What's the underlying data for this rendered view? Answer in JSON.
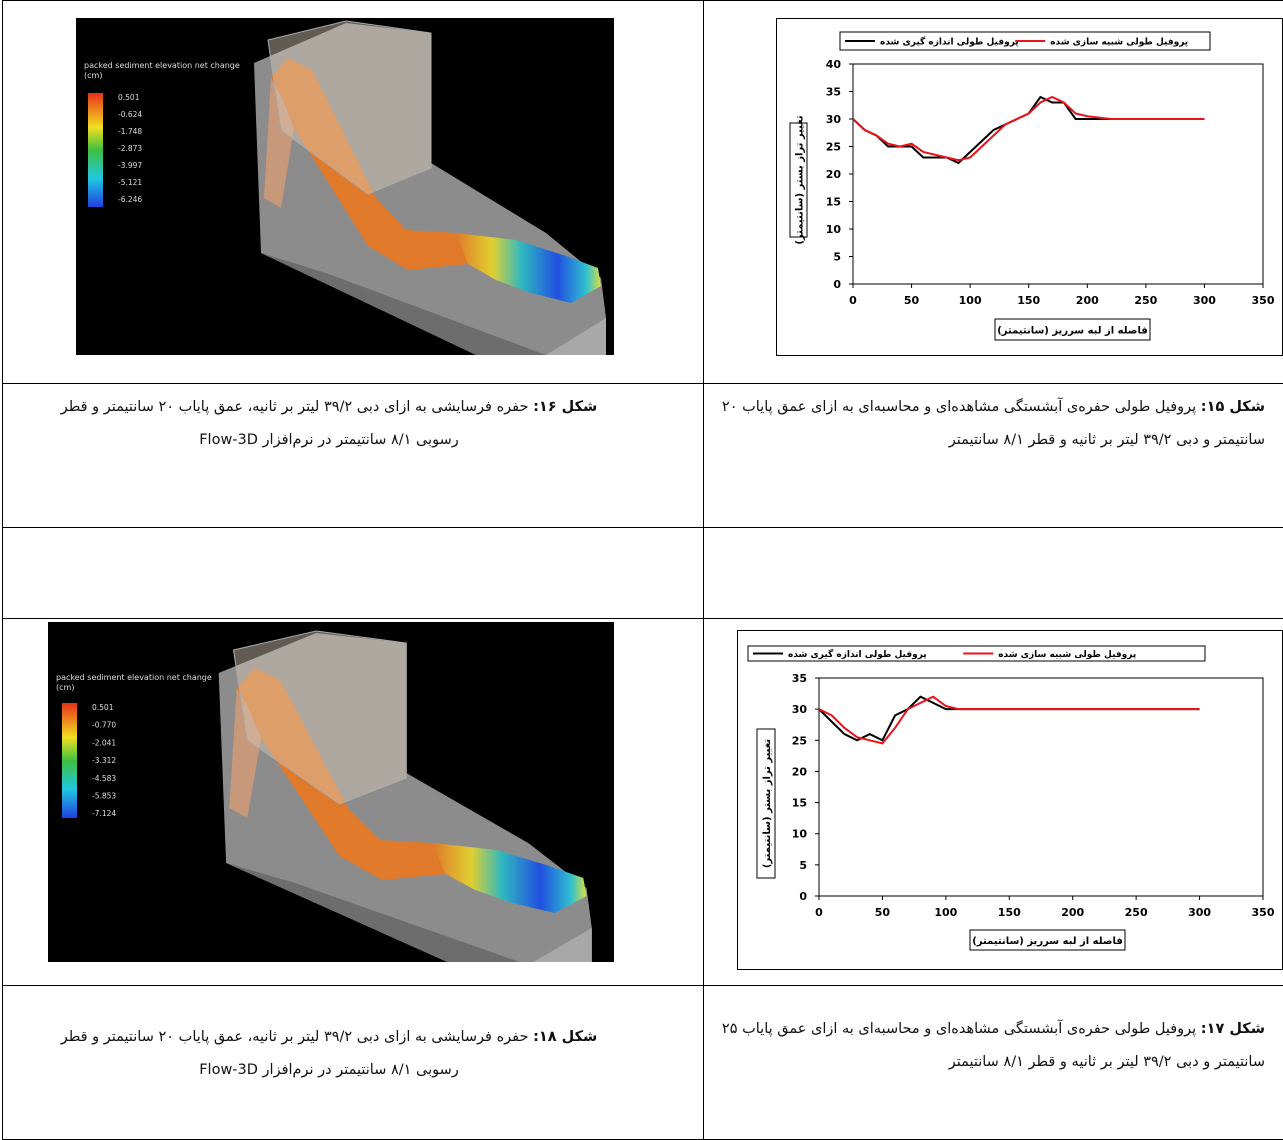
{
  "chart_data": [
    {
      "type": "line",
      "x_label": "فاصله از لبه سرریز (سانتیمتر)",
      "y_label": "تغییر تراز بستر (سانتیمتر)",
      "x": [
        0,
        10,
        20,
        30,
        40,
        50,
        60,
        70,
        80,
        90,
        100,
        110,
        120,
        130,
        140,
        150,
        160,
        170,
        180,
        190,
        200,
        220,
        250,
        300
      ],
      "series": [
        {
          "name": "پروفیل طولی اندازه گیری شده",
          "color": "#000000",
          "values": [
            30,
            28,
            27,
            25,
            25,
            25,
            23,
            23,
            23,
            22,
            24,
            26,
            28,
            29,
            30,
            31,
            34,
            33,
            33,
            30,
            30,
            30,
            30,
            30
          ]
        },
        {
          "name": "پروفیل طولی شبیه سازی شده",
          "color": "#e8121b",
          "values": [
            30,
            28,
            27,
            25.5,
            25,
            25.5,
            24,
            23.5,
            23,
            22.5,
            23,
            25,
            27,
            29,
            30,
            31,
            33,
            34,
            33,
            31,
            30.5,
            30,
            30,
            30
          ]
        }
      ],
      "xlim": [
        0,
        350
      ],
      "xticks": [
        0,
        50,
        100,
        150,
        200,
        250,
        300,
        350
      ],
      "ylim": [
        0,
        40
      ],
      "yticks": [
        0,
        5,
        10,
        15,
        20,
        25,
        30,
        35,
        40
      ],
      "legend": "top"
    },
    {
      "type": "line",
      "x_label": "فاصله از لبه سرریز (سانتیمتر)",
      "y_label": "تغییر تراز بستر (سانتیمتر)",
      "x": [
        0,
        10,
        20,
        30,
        40,
        50,
        60,
        70,
        80,
        90,
        100,
        110,
        150,
        200,
        250,
        300
      ],
      "series": [
        {
          "name": "پروفیل طولی اندازه گیری شده",
          "color": "#000000",
          "values": [
            30,
            28,
            26,
            25,
            26,
            25,
            29,
            30,
            32,
            31,
            30,
            30,
            30,
            30,
            30,
            30
          ]
        },
        {
          "name": "پروفیل طولی شبیه سازی شده",
          "color": "#e8121b",
          "values": [
            30,
            29,
            27,
            25.5,
            25,
            24.5,
            27,
            30,
            31,
            32,
            30.5,
            30,
            30,
            30,
            30,
            30
          ]
        }
      ],
      "xlim": [
        0,
        350
      ],
      "xticks": [
        0,
        50,
        100,
        150,
        200,
        250,
        300,
        350
      ],
      "ylim": [
        0,
        35
      ],
      "yticks": [
        0,
        5,
        10,
        15,
        20,
        25,
        30,
        35
      ],
      "legend": "top"
    }
  ],
  "images": [
    {
      "legend_title": "packed sediment elevation net change",
      "legend_unit": "(cm)",
      "legend_values": [
        "0.501",
        "-0.624",
        "-1.748",
        "-2.873",
        "-3.997",
        "-5.121",
        "-6.246"
      ]
    },
    {
      "legend_title": "packed sediment elevation net change",
      "legend_unit": "(cm)",
      "legend_values": [
        "0.501",
        "-0.770",
        "-2.041",
        "-3.312",
        "-4.583",
        "-5.853",
        "-7.124"
      ]
    }
  ],
  "captions": [
    {
      "label": "شکل ۱۵:",
      "text": "پروفیل طولی حفره‌ی آبشستگی مشاهده‌ای و محاسبه‌ای به ازای عمق پایاب ۲۰ سانتیمتر و دبی ۳۹/۲ لیتر بر ثانیه و قطر ۸/۱ سانتیمتر"
    },
    {
      "label": "شکل ۱۶:",
      "text": "حفره فرسایشی به ازای دبی ۳۹/۲ لیتر بر ثانیه، عمق پایاب ۲۰ سانتیمتر و قطر رسوبی ۸/۱ سانتیمتر در نرم‌افزار Flow-3D"
    },
    {
      "label": "شکل ۱۷:",
      "text": "پروفیل طولی حفره‌ی آبشستگی مشاهده‌ای و محاسبه‌ای به ازای عمق پایاب ۲۵ سانتیمتر و دبی ۳۹/۲ لیتر بر ثانیه و قطر ۸/۱ سانتیمتر"
    },
    {
      "label": "شکل ۱۸:",
      "text": "حفره فرسایشی به ازای دبی ۳۹/۲ لیتر بر ثانیه، عمق پایاب ۲۰ سانتیمتر و قطر رسوبی ۸/۱ سانتیمتر در نرم‌افزار Flow-3D"
    }
  ]
}
